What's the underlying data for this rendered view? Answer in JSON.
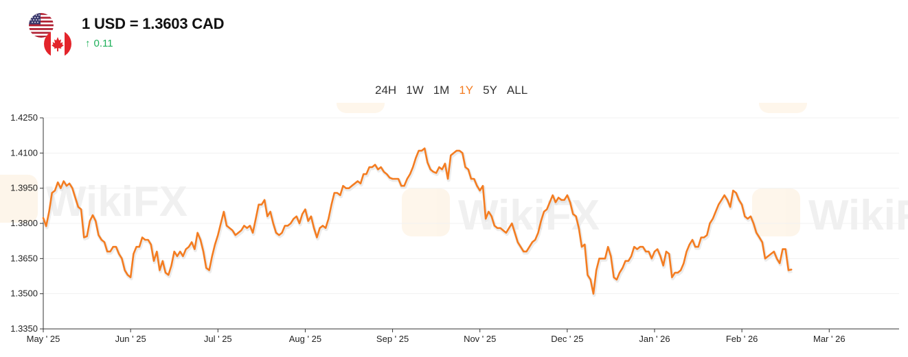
{
  "header": {
    "title": "1 USD = 1.3603 CAD",
    "change_arrow": "↑",
    "change_value": "0.11",
    "change_color": "#1fb05a",
    "base_flag_icon": "us-flag-icon",
    "quote_flag_icon": "canada-flag-icon"
  },
  "ranges": {
    "items": [
      "24H",
      "1W",
      "1M",
      "1Y",
      "5Y",
      "ALL"
    ],
    "active": "1Y",
    "accent_color": "#f47c20"
  },
  "watermark": {
    "text": "WikiFX"
  },
  "chart_data": {
    "type": "line",
    "title": "",
    "xlabel": "",
    "ylabel": "",
    "ylim": [
      1.335,
      1.425
    ],
    "y_ticks": [
      "1.4250",
      "1.4100",
      "1.3950",
      "1.3800",
      "1.3650",
      "1.3500",
      "1.3350"
    ],
    "x_ticks": [
      "May ' 25",
      "Jun ' 25",
      "Jul ' 25",
      "Aug ' 25",
      "Sep ' 25",
      "Nov ' 25",
      "Dec ' 25",
      "Jan ' 26",
      "Feb ' 26",
      "Mar ' 26"
    ],
    "x_tick_positions": [
      0,
      30,
      60,
      90,
      120,
      150,
      180,
      210,
      240,
      270
    ],
    "x_span": 294,
    "line_color": "#f47c20",
    "grid": "horizontal",
    "series": [
      {
        "values": [
          1.3823,
          1.3788,
          1.385,
          1.393,
          1.394,
          1.3975,
          1.395,
          1.398,
          1.396,
          1.397,
          1.395,
          1.391,
          1.387,
          1.386,
          1.374,
          1.3745,
          1.381,
          1.3835,
          1.381,
          1.375,
          1.373,
          1.372,
          1.368,
          1.368,
          1.37,
          1.37,
          1.367,
          1.365,
          1.36,
          1.358,
          1.357,
          1.367,
          1.37,
          1.37,
          1.374,
          1.373,
          1.373,
          1.371,
          1.364,
          1.368,
          1.36,
          1.364,
          1.359,
          1.358,
          1.362,
          1.368,
          1.366,
          1.368,
          1.366,
          1.369,
          1.37,
          1.372,
          1.369,
          1.376,
          1.373,
          1.368,
          1.361,
          1.36,
          1.366,
          1.371,
          1.375,
          1.38,
          1.385,
          1.379,
          1.378,
          1.377,
          1.375,
          1.376,
          1.377,
          1.379,
          1.378,
          1.379,
          1.376,
          1.382,
          1.388,
          1.388,
          1.39,
          1.383,
          1.385,
          1.38,
          1.376,
          1.375,
          1.376,
          1.379,
          1.379,
          1.38,
          1.382,
          1.383,
          1.38,
          1.384,
          1.386,
          1.381,
          1.383,
          1.378,
          1.374,
          1.378,
          1.379,
          1.378,
          1.382,
          1.388,
          1.393,
          1.393,
          1.392,
          1.396,
          1.395,
          1.395,
          1.396,
          1.397,
          1.398,
          1.397,
          1.401,
          1.401,
          1.404,
          1.404,
          1.405,
          1.403,
          1.404,
          1.402,
          1.401,
          1.3995,
          1.399,
          1.399,
          1.399,
          1.396,
          1.396,
          1.399,
          1.401,
          1.404,
          1.408,
          1.411,
          1.411,
          1.412,
          1.406,
          1.403,
          1.402,
          1.4015,
          1.404,
          1.403,
          1.4055,
          1.399,
          1.409,
          1.41,
          1.411,
          1.411,
          1.41,
          1.404,
          1.403,
          1.399,
          1.399,
          1.396,
          1.394,
          1.396,
          1.382,
          1.385,
          1.383,
          1.379,
          1.378,
          1.378,
          1.377,
          1.376,
          1.378,
          1.38,
          1.376,
          1.372,
          1.37,
          1.368,
          1.368,
          1.37,
          1.372,
          1.373,
          1.376,
          1.381,
          1.385,
          1.386,
          1.389,
          1.392,
          1.389,
          1.391,
          1.39,
          1.39,
          1.392,
          1.389,
          1.384,
          1.383,
          1.378,
          1.37,
          1.371,
          1.358,
          1.356,
          1.35,
          1.36,
          1.365,
          1.365,
          1.365,
          1.37,
          1.366,
          1.357,
          1.356,
          1.359,
          1.361,
          1.364,
          1.364,
          1.366,
          1.37,
          1.369,
          1.37,
          1.37,
          1.368,
          1.368,
          1.365,
          1.368,
          1.369,
          1.366,
          1.362,
          1.368,
          1.367,
          1.357,
          1.359,
          1.359,
          1.36,
          1.363,
          1.368,
          1.371,
          1.373,
          1.37,
          1.37,
          1.374,
          1.374,
          1.375,
          1.38,
          1.382,
          1.385,
          1.388,
          1.39,
          1.392,
          1.39,
          1.387,
          1.394,
          1.393,
          1.39,
          1.388,
          1.383,
          1.382,
          1.383,
          1.38,
          1.376,
          1.374,
          1.372,
          1.365,
          1.366,
          1.367,
          1.368,
          1.365,
          1.363,
          1.369,
          1.369,
          1.36,
          1.3603
        ]
      }
    ]
  }
}
